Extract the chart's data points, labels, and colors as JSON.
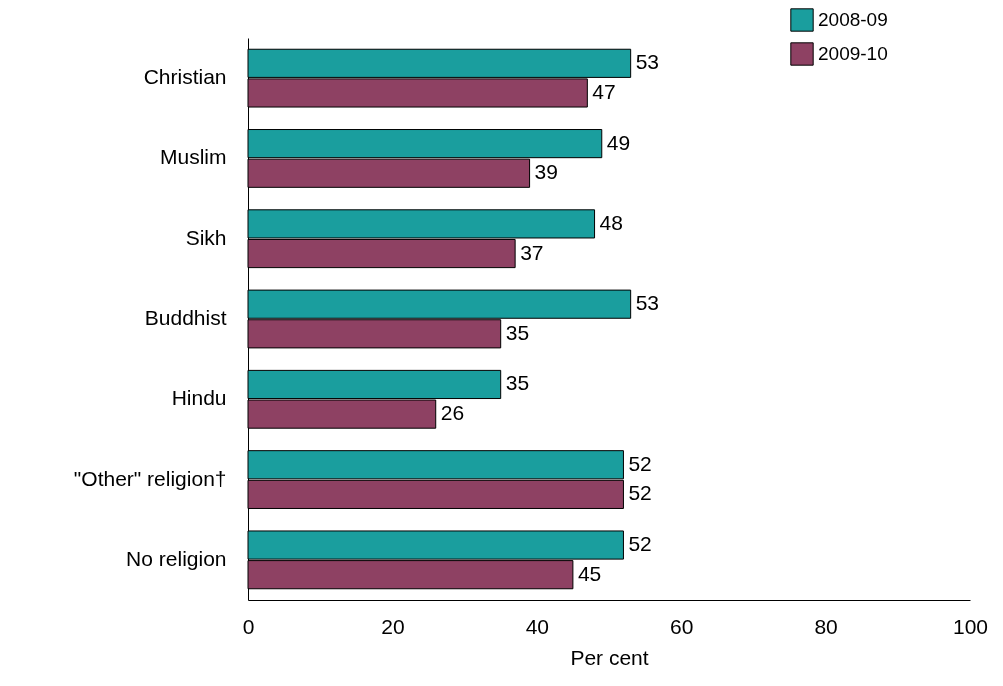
{
  "chart_data": {
    "type": "bar",
    "orientation": "horizontal",
    "xlabel": "Per cent",
    "categories": [
      "Christian",
      "Muslim",
      "Sikh",
      "Buddhist",
      "Hindu",
      "\"Other\" religion†",
      "No religion"
    ],
    "series": [
      {
        "name": "2008-09",
        "color": "#1a9e9e",
        "values": [
          53,
          49,
          48,
          53,
          35,
          52,
          52
        ]
      },
      {
        "name": "2009-10",
        "color": "#8e4163",
        "values": [
          47,
          39,
          37,
          35,
          26,
          52,
          45
        ]
      }
    ],
    "xlim": [
      0,
      100
    ],
    "xticks": [
      0,
      20,
      40,
      60,
      80,
      100
    ],
    "grid": false,
    "legend": "top right",
    "data_labels": true
  }
}
